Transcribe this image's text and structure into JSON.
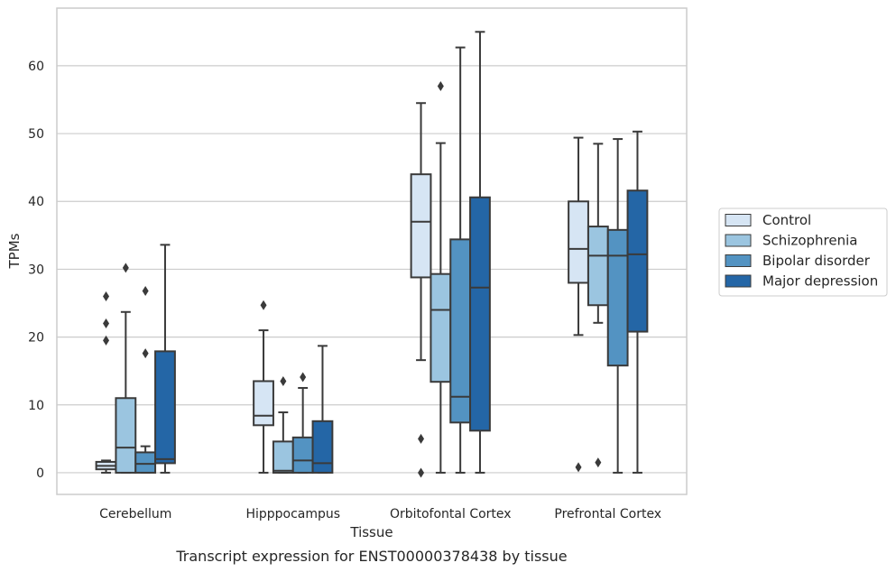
{
  "caption": "Transcript expression for ENST00000378438 by tissue",
  "chart_data": {
    "type": "box",
    "xlabel": "Tissue",
    "ylabel": "TPMs",
    "ylim": [
      -3.2,
      68.5
    ],
    "yticks": [
      0,
      10,
      20,
      30,
      40,
      50,
      60
    ],
    "grid": "horizontal",
    "legend_position": "right",
    "categories": [
      "Cerebellum",
      "Hipppocampus",
      "Orbitofontal Cortex",
      "Prefrontal Cortex"
    ],
    "series": [
      {
        "name": "Control",
        "color": "#d6e5f4",
        "boxes": [
          {
            "whislo": 0,
            "q1": 0.5,
            "med": 1.0,
            "q3": 1.6,
            "whishi": 1.8,
            "fliers": [
              19.5,
              22,
              26
            ]
          },
          {
            "whislo": 0,
            "q1": 7,
            "med": 8.4,
            "q3": 13.5,
            "whishi": 21,
            "fliers": [
              24.7
            ]
          },
          {
            "whislo": 16.6,
            "q1": 28.8,
            "med": 37,
            "q3": 44,
            "whishi": 54.5,
            "fliers": [
              0,
              5
            ]
          },
          {
            "whislo": 20.3,
            "q1": 28,
            "med": 33,
            "q3": 40,
            "whishi": 49.4,
            "fliers": [
              0.8
            ]
          }
        ]
      },
      {
        "name": "Schizophrenia",
        "color": "#9bc5e0",
        "boxes": [
          {
            "whislo": 0,
            "q1": 0,
            "med": 3.7,
            "q3": 11,
            "whishi": 23.7,
            "fliers": [
              30.2
            ]
          },
          {
            "whislo": 0,
            "q1": 0,
            "med": 0.3,
            "q3": 4.6,
            "whishi": 8.9,
            "fliers": [
              13.5
            ]
          },
          {
            "whislo": 0,
            "q1": 13.4,
            "med": 24,
            "q3": 29.3,
            "whishi": 48.6,
            "fliers": [
              57
            ]
          },
          {
            "whislo": 22.1,
            "q1": 24.7,
            "med": 32,
            "q3": 36.3,
            "whishi": 48.5,
            "fliers": [
              1.5
            ]
          }
        ]
      },
      {
        "name": "Bipolar disorder",
        "color": "#5393c2",
        "boxes": [
          {
            "whislo": 0,
            "q1": 0,
            "med": 1.3,
            "q3": 3,
            "whishi": 3.9,
            "fliers": [
              17.6,
              26.8
            ]
          },
          {
            "whislo": 0,
            "q1": 0,
            "med": 1.8,
            "q3": 5.2,
            "whishi": 12.5,
            "fliers": [
              14.1
            ]
          },
          {
            "whislo": 0,
            "q1": 7.4,
            "med": 11.2,
            "q3": 34.4,
            "whishi": 62.7,
            "fliers": []
          },
          {
            "whislo": 0,
            "q1": 15.8,
            "med": 32,
            "q3": 35.8,
            "whishi": 49.2,
            "fliers": []
          }
        ]
      },
      {
        "name": "Major depression",
        "color": "#2466a6",
        "boxes": [
          {
            "whislo": 0,
            "q1": 1.4,
            "med": 2.0,
            "q3": 17.9,
            "whishi": 33.6,
            "fliers": []
          },
          {
            "whislo": 0,
            "q1": 0,
            "med": 1.4,
            "q3": 7.6,
            "whishi": 18.7,
            "fliers": []
          },
          {
            "whislo": 0,
            "q1": 6.2,
            "med": 27.3,
            "q3": 40.6,
            "whishi": 65,
            "fliers": []
          },
          {
            "whislo": 0,
            "q1": 20.8,
            "med": 32.2,
            "q3": 41.6,
            "whishi": 50.3,
            "fliers": []
          }
        ]
      }
    ]
  }
}
